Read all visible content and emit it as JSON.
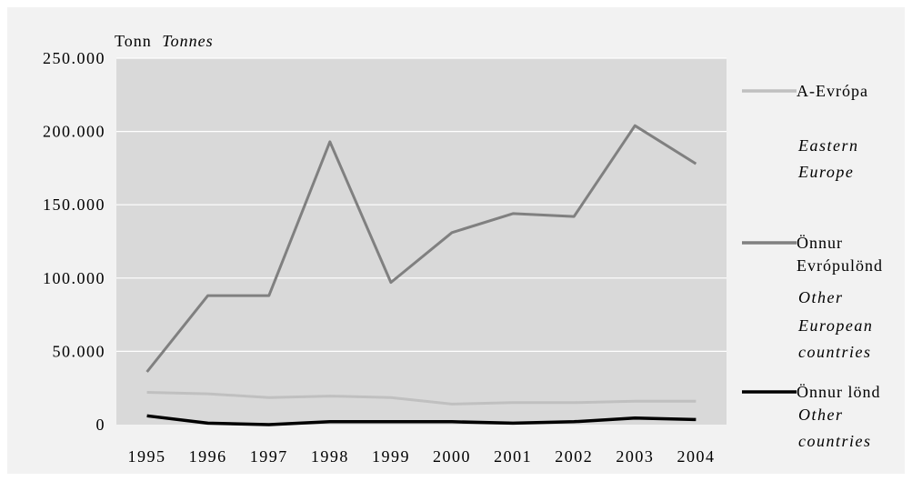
{
  "chart_data": {
    "type": "line",
    "ylabel": "Tonn",
    "ylabel_en": "Tonnes",
    "categories": [
      "1995",
      "1996",
      "1997",
      "1998",
      "1999",
      "2000",
      "2001",
      "2002",
      "2003",
      "2004"
    ],
    "yticks": [
      "250.000",
      "200.000",
      "150.000",
      "100.000",
      "50.000",
      "0"
    ],
    "ylim": [
      0,
      250000
    ],
    "grid": true,
    "legend_position": "right",
    "series": [
      {
        "key": "eastern",
        "name": "A-Evrópa",
        "name_en_lines": [
          "Eastern",
          "Europe"
        ],
        "color": "#c0c0c0",
        "values": [
          22000,
          21000,
          18500,
          19500,
          18500,
          14000,
          15000,
          15000,
          16000,
          16000
        ]
      },
      {
        "key": "other_europe",
        "name_lines": [
          "Önnur",
          "Evrópulönd"
        ],
        "name_en_lines": [
          "Other",
          "European",
          "countries"
        ],
        "color": "#808080",
        "values": [
          36000,
          88000,
          88000,
          193000,
          97000,
          131000,
          144000,
          142000,
          204000,
          178000
        ]
      },
      {
        "key": "other",
        "name": "Önnur lönd",
        "name_en_lines": [
          "Other",
          "countries"
        ],
        "color": "#000000",
        "values": [
          6000,
          1000,
          0,
          2000,
          2000,
          2000,
          1000,
          2000,
          4500,
          3500
        ]
      }
    ]
  }
}
